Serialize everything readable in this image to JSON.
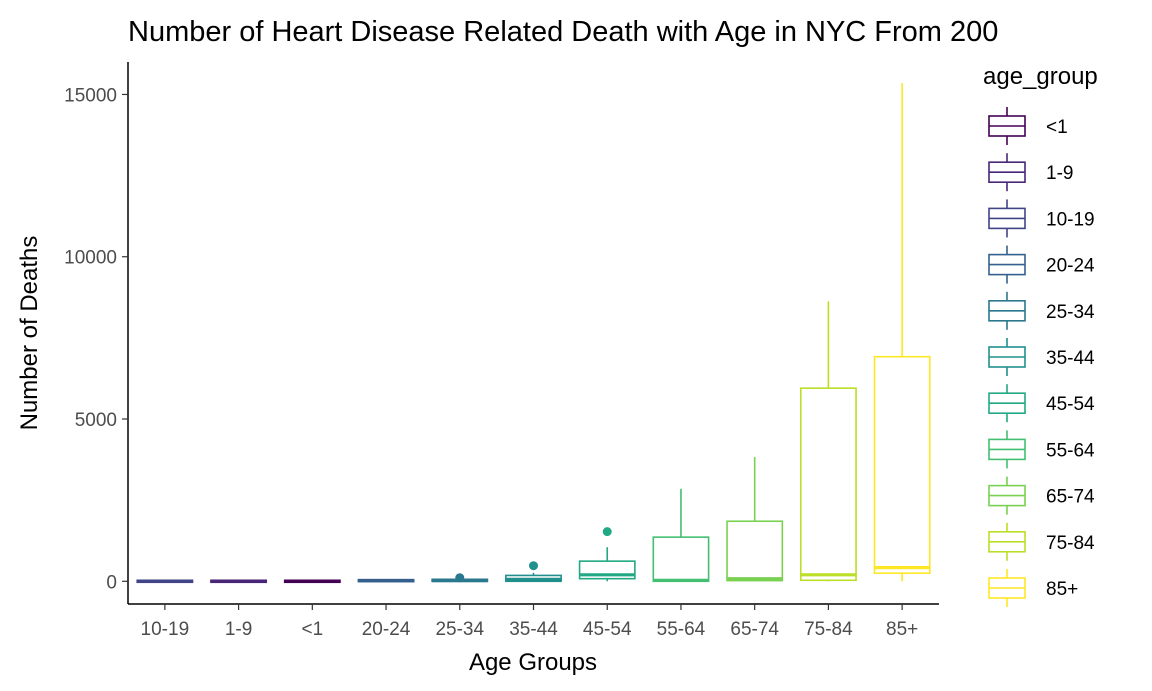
{
  "chart_data": {
    "type": "boxplot",
    "title": "Number of Heart Disease Related Death with Age in NYC From 200",
    "xlabel": "Age Groups",
    "ylabel": "Number of Deaths",
    "ylim": [
      -700,
      16000
    ],
    "yticks": [
      0,
      5000,
      10000,
      15000
    ],
    "grid": false,
    "legend_title": "age_group",
    "legend_position": "right",
    "categories": [
      "10-19",
      "1-9",
      "<1",
      "20-24",
      "25-34",
      "35-44",
      "45-54",
      "55-64",
      "65-74",
      "75-84",
      "85+"
    ],
    "legend_order": [
      "<1",
      "1-9",
      "10-19",
      "20-24",
      "25-34",
      "35-44",
      "45-54",
      "55-64",
      "65-74",
      "75-84",
      "85+"
    ],
    "colors": {
      "<1": "#440154",
      "1-9": "#482576",
      "10-19": "#414487",
      "20-24": "#35608d",
      "25-34": "#2a788e",
      "35-44": "#21908d",
      "45-54": "#22a884",
      "55-64": "#43bf71",
      "65-74": "#7ad151",
      "75-84": "#bbdf27",
      "85+": "#fde725"
    },
    "boxes": [
      {
        "group": "10-19",
        "min": 0,
        "q1": 0,
        "median": 0,
        "q3": 0,
        "max": 0,
        "outliers": []
      },
      {
        "group": "1-9",
        "min": 0,
        "q1": 0,
        "median": 0,
        "q3": 0,
        "max": 0,
        "outliers": []
      },
      {
        "group": "<1",
        "min": 0,
        "q1": 0,
        "median": 0,
        "q3": 0,
        "max": 0,
        "outliers": []
      },
      {
        "group": "20-24",
        "min": 0,
        "q1": 0,
        "median": 20,
        "q3": 40,
        "max": 60,
        "outliers": []
      },
      {
        "group": "25-34",
        "min": 0,
        "q1": 0,
        "median": 20,
        "q3": 60,
        "max": 80,
        "outliers": [
          110
        ]
      },
      {
        "group": "35-44",
        "min": 0,
        "q1": 0,
        "median": 60,
        "q3": 180,
        "max": 260,
        "outliers": [
          480
        ]
      },
      {
        "group": "45-54",
        "min": 0,
        "q1": 80,
        "median": 200,
        "q3": 620,
        "max": 1050,
        "outliers": [
          1530
        ]
      },
      {
        "group": "55-64",
        "min": 0,
        "q1": 0,
        "median": 30,
        "q3": 1360,
        "max": 2850,
        "outliers": []
      },
      {
        "group": "65-74",
        "min": 0,
        "q1": 20,
        "median": 80,
        "q3": 1850,
        "max": 3830,
        "outliers": []
      },
      {
        "group": "75-84",
        "min": 0,
        "q1": 30,
        "median": 200,
        "q3": 5950,
        "max": 8620,
        "outliers": []
      },
      {
        "group": "85+",
        "min": 0,
        "q1": 250,
        "median": 420,
        "q3": 6920,
        "max": 15350,
        "outliers": []
      }
    ]
  }
}
